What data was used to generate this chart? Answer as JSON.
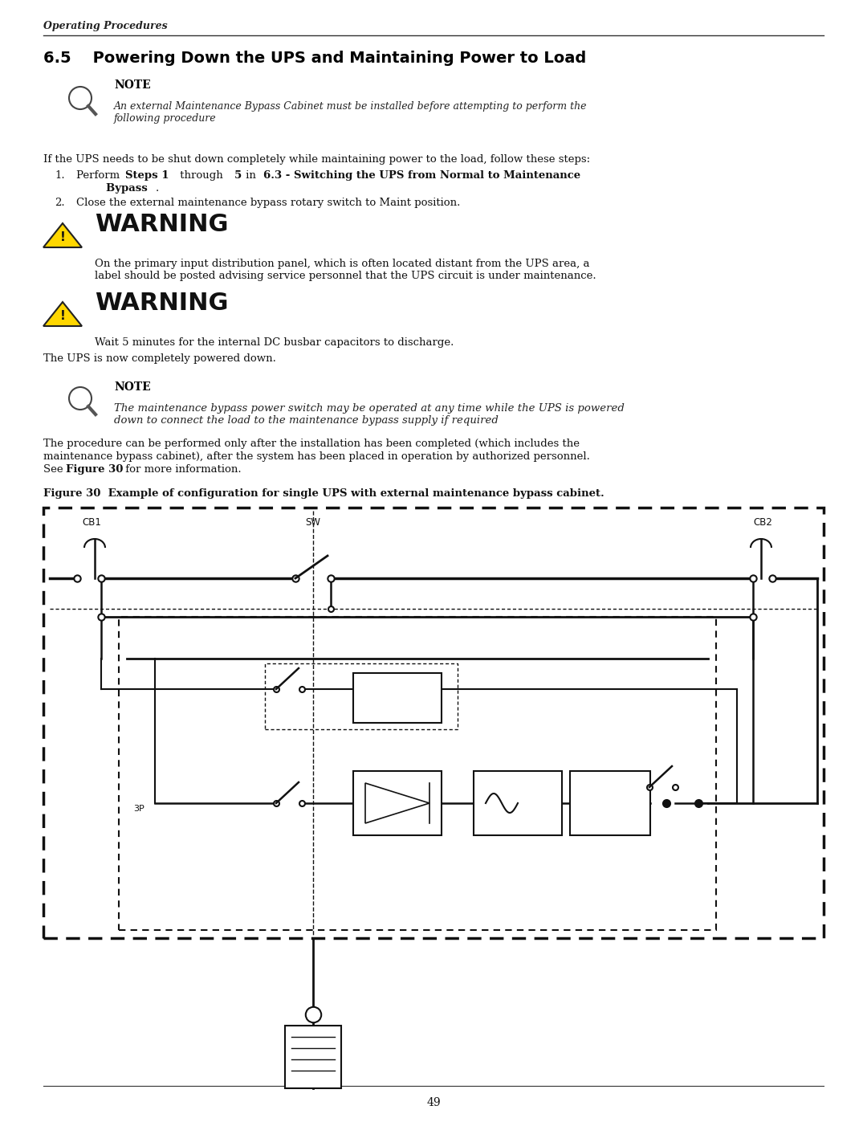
{
  "bg_color": "#ffffff",
  "page_width": 10.8,
  "page_height": 13.97,
  "header_text": "Operating Procedures",
  "section_title": "6.5    Powering Down the UPS and Maintaining Power to Load",
  "note1_title": "NOTE",
  "note1_text": "An external Maintenance Bypass Cabinet must be installed before attempting to perform the\nfollowing procedure",
  "intro_text": "If the UPS needs to be shut down completely while maintaining power to the load, follow these steps:",
  "step2_text": "Close the external maintenance bypass rotary switch to Maint position.",
  "warn1_title": "WARNING",
  "warn1_text": "On the primary input distribution panel, which is often located distant from the UPS area, a\nlabel should be posted advising service personnel that the UPS circuit is under maintenance.",
  "warn2_title": "WARNING",
  "warn2_text": "Wait 5 minutes for the internal DC busbar capacitors to discharge.",
  "powered_down_text": "The UPS is now completely powered down.",
  "note2_title": "NOTE",
  "note2_text": "The maintenance bypass power switch may be operated at any time while the UPS is powered\ndown to connect the load to the maintenance bypass supply if required",
  "procedure_text": "The procedure can be performed only after the installation has been completed (which includes the\nmaintenance bypass cabinet), after the system has been placed in operation by authorized personnel.\nSee Figure 30 for more information.",
  "figure_caption": "Figure 30  Example of configuration for single UPS with external maintenance bypass cabinet.",
  "page_number": "49"
}
